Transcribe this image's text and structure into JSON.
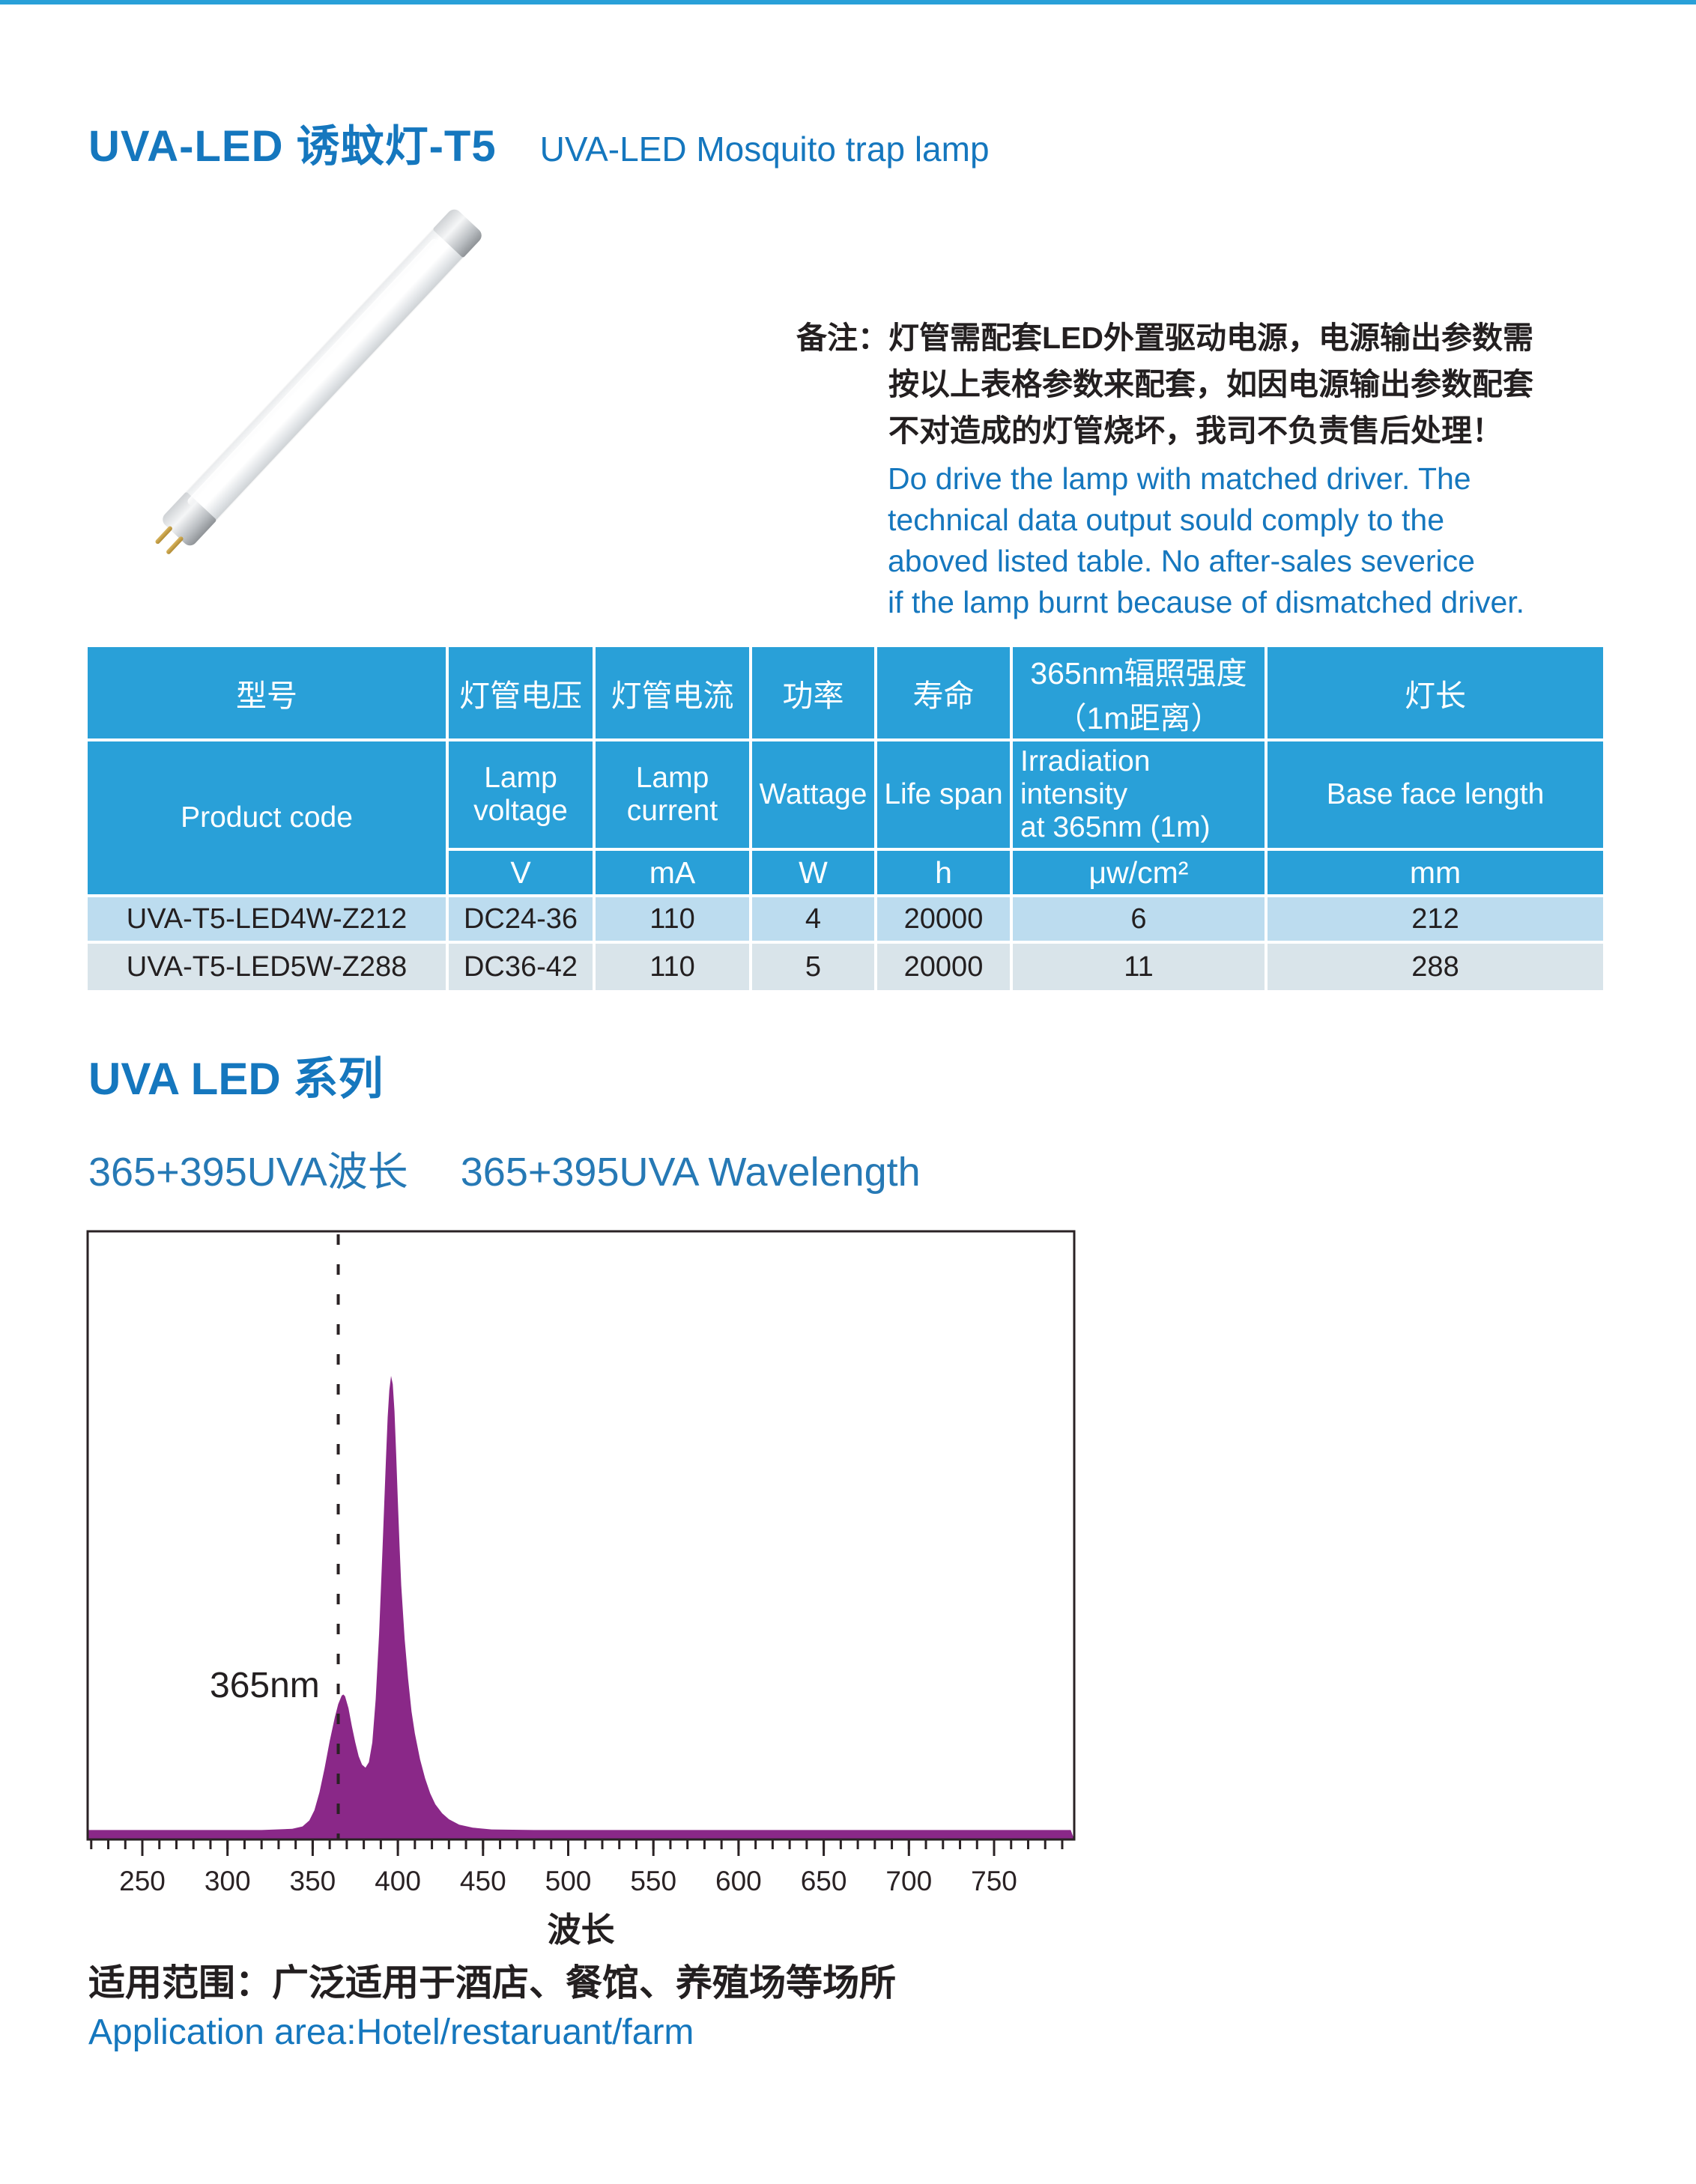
{
  "accent": {
    "blue_heading": "#1577be",
    "table_header_blue": "#29a0d8",
    "row1_bg": "#bcdcef",
    "row2_bg": "#d9e4ea",
    "axis_color": "#2a2224",
    "spectrum_purple": "#8a2888"
  },
  "header": {
    "title_zh": "UVA-LED 诱蚊灯-T5",
    "title_en": "UVA-LED Mosquito trap lamp"
  },
  "notes": {
    "label": "备注：",
    "zh_lines": {
      "0": "灯管需配套LED外置驱动电源，电源输出参数需",
      "1": "按以上表格参数来配套，如因电源输出参数配套",
      "2": "不对造成的灯管烧坏，我司不负责售后处理！"
    },
    "en_lines": {
      "0": "Do drive the lamp with matched driver. The",
      "1": "technical data output sould comply to the",
      "2": "aboved listed table. No after-sales severice",
      "3": "if the lamp burnt because of  dismatched driver."
    }
  },
  "table": {
    "headers_zh": [
      "型号",
      "灯管电压",
      "灯管电流",
      "功率",
      "寿命",
      "365nm辐照强度\n（1m距离）",
      "灯长"
    ],
    "headers_en": [
      "Product  code",
      "Lamp\nvoltage",
      "Lamp\ncurrent",
      "Wattage",
      "Life span",
      "Irradiation intensity\nat 365nm (1m)",
      "Base face length"
    ],
    "units": [
      "V",
      "mA",
      "W",
      "h",
      "μw/cm²",
      "mm"
    ],
    "rows": [
      [
        "UVA-T5-LED4W-Z212",
        "DC24-36",
        "110",
        "4",
        "20000",
        "6",
        "212"
      ],
      [
        "UVA-T5-LED5W-Z288",
        "DC36-42",
        "110",
        "5",
        "20000",
        "11",
        "288"
      ]
    ]
  },
  "section": {
    "series_title": "UVA LED 系列",
    "wavelength_zh": "365+395UVA波长",
    "wavelength_en": "365+395UVA Wavelength"
  },
  "chart_data": {
    "type": "area",
    "title": "",
    "xlabel": "波长",
    "ylabel": "",
    "x_range_nm": [
      218,
      797
    ],
    "x_tick_labels": [
      250,
      300,
      350,
      400,
      450,
      500,
      550,
      600,
      650,
      700,
      750
    ],
    "x_minor_step_nm": 10,
    "ylim": [
      0,
      1
    ],
    "grid": false,
    "legend": false,
    "annotation": "365nm",
    "dashed_line_x_nm": 365,
    "series": [
      {
        "name": "365+395 UVA spectrum",
        "fill_color": "#8a2888",
        "peaks": [
          {
            "wavelength_nm": 368,
            "relative_intensity": 0.23
          },
          {
            "wavelength_nm": 396,
            "relative_intensity": 0.76
          }
        ],
        "valley": {
          "wavelength_nm": 381,
          "relative_intensity": 0.11
        },
        "profile_nm_intensity": [
          [
            218,
            0.002
          ],
          [
            320,
            0.002
          ],
          [
            338,
            0.004
          ],
          [
            344,
            0.008
          ],
          [
            348,
            0.018
          ],
          [
            351,
            0.035
          ],
          [
            354,
            0.065
          ],
          [
            357,
            0.105
          ],
          [
            360,
            0.15
          ],
          [
            363,
            0.19
          ],
          [
            365,
            0.212
          ],
          [
            367,
            0.226
          ],
          [
            368,
            0.228
          ],
          [
            369,
            0.225
          ],
          [
            371,
            0.205
          ],
          [
            373,
            0.175
          ],
          [
            375,
            0.148
          ],
          [
            377,
            0.125
          ],
          [
            379,
            0.111
          ],
          [
            381,
            0.106
          ],
          [
            383,
            0.115
          ],
          [
            385,
            0.148
          ],
          [
            387,
            0.22
          ],
          [
            389,
            0.33
          ],
          [
            391,
            0.47
          ],
          [
            393,
            0.62
          ],
          [
            394,
            0.69
          ],
          [
            395,
            0.735
          ],
          [
            396,
            0.759
          ],
          [
            397,
            0.745
          ],
          [
            398,
            0.7
          ],
          [
            399,
            0.63
          ],
          [
            400,
            0.55
          ],
          [
            401,
            0.475
          ],
          [
            402,
            0.41
          ],
          [
            404,
            0.32
          ],
          [
            406,
            0.255
          ],
          [
            408,
            0.2
          ],
          [
            410,
            0.163
          ],
          [
            413,
            0.12
          ],
          [
            416,
            0.088
          ],
          [
            419,
            0.063
          ],
          [
            422,
            0.045
          ],
          [
            426,
            0.03
          ],
          [
            430,
            0.02
          ],
          [
            436,
            0.011
          ],
          [
            444,
            0.006
          ],
          [
            455,
            0.003
          ],
          [
            480,
            0.002
          ],
          [
            795,
            0.002
          ]
        ]
      }
    ]
  },
  "footer": {
    "application_zh": "适用范围：广泛适用于酒店、餐馆、养殖场等场所",
    "application_en": "Application area:Hotel/restaruant/farm"
  }
}
